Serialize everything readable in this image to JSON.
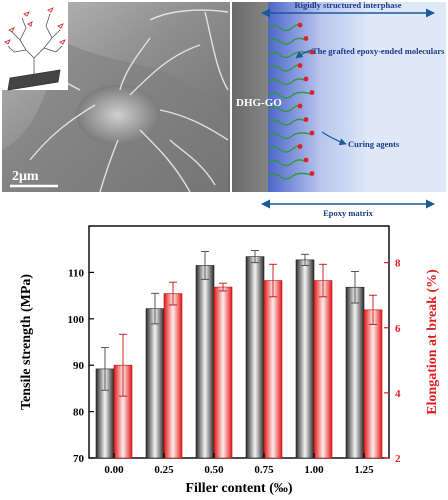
{
  "sem_panel": {
    "scale_bar_label": "2μm",
    "structure_icon": "branched-molecule-icon"
  },
  "schematic": {
    "top_label": "Rigidly structured interphase",
    "material_label": "DHG-GO",
    "grafted_label": "The grafted epoxy-ended moleculars",
    "curing_label": "Curing agents",
    "matrix_label": "Epoxy matrix",
    "chain_color": "#2e9a3a",
    "agent_color": "#e02020",
    "arrow_color": "#1b5a9a",
    "label_color": "#1a3a8a"
  },
  "chart_data": {
    "type": "bar",
    "categories": [
      "0.00",
      "0.25",
      "0.50",
      "0.75",
      "1.00",
      "1.25"
    ],
    "xlabel": "Filler content (‰)",
    "series": [
      {
        "axis": "left",
        "values": [
          89.2,
          102.2,
          111.5,
          113.4,
          112.7,
          106.8
        ],
        "errors": [
          4.6,
          3.3,
          3.0,
          1.3,
          1.2,
          3.4
        ],
        "color": "#333333"
      },
      {
        "axis": "right",
        "values": [
          4.85,
          7.05,
          7.25,
          7.45,
          7.45,
          6.55
        ],
        "errors": [
          0.95,
          0.35,
          0.12,
          0.5,
          0.5,
          0.45
        ],
        "color": "#e02020"
      }
    ],
    "y_left": {
      "label": "Tensile strength (MPa)",
      "lim": [
        70,
        120
      ],
      "ticks": [
        70,
        80,
        90,
        100,
        110
      ],
      "color": "#000000"
    },
    "y_right": {
      "label": "Elongation at break (%)",
      "lim": [
        2,
        9.125
      ],
      "ticks": [
        2,
        4,
        6,
        8
      ],
      "color": "#e02020"
    },
    "grid": false
  }
}
